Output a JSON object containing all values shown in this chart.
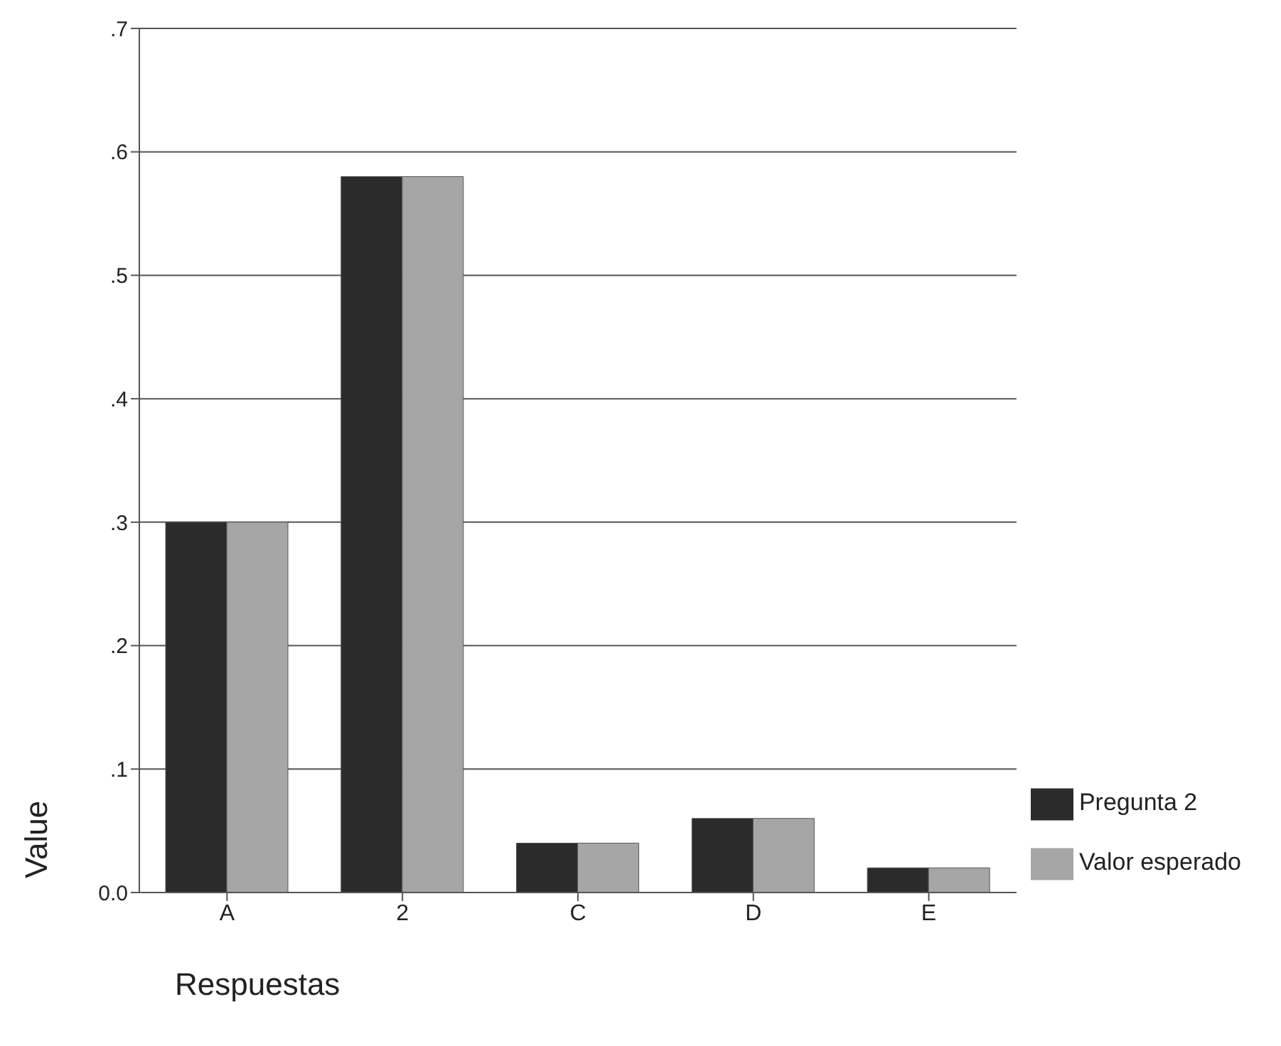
{
  "chart_data": {
    "type": "bar",
    "xlabel": "Respuestas",
    "ylabel": "Value",
    "categories": [
      "A",
      "2",
      "C",
      "D",
      "E"
    ],
    "series": [
      {
        "name": "Pregunta 2",
        "color": "#2b2b2b",
        "values": [
          0.3,
          0.58,
          0.04,
          0.06,
          0.02
        ]
      },
      {
        "name": "Valor esperado",
        "color": "#a6a6a6",
        "values": [
          0.3,
          0.58,
          0.04,
          0.06,
          0.02
        ]
      }
    ],
    "ylim": [
      0,
      0.7
    ],
    "yticks": [
      {
        "value": 0,
        "label": "0.0"
      },
      {
        "value": 0.1,
        "label": ".1"
      },
      {
        "value": 0.2,
        "label": ".2"
      },
      {
        "value": 0.3,
        "label": ".3"
      },
      {
        "value": 0.4,
        "label": ".4"
      },
      {
        "value": 0.5,
        "label": ".5"
      },
      {
        "value": 0.6,
        "label": ".6"
      },
      {
        "value": 0.7,
        "label": ".7"
      }
    ],
    "grid": "y",
    "legend": "bottom right"
  }
}
